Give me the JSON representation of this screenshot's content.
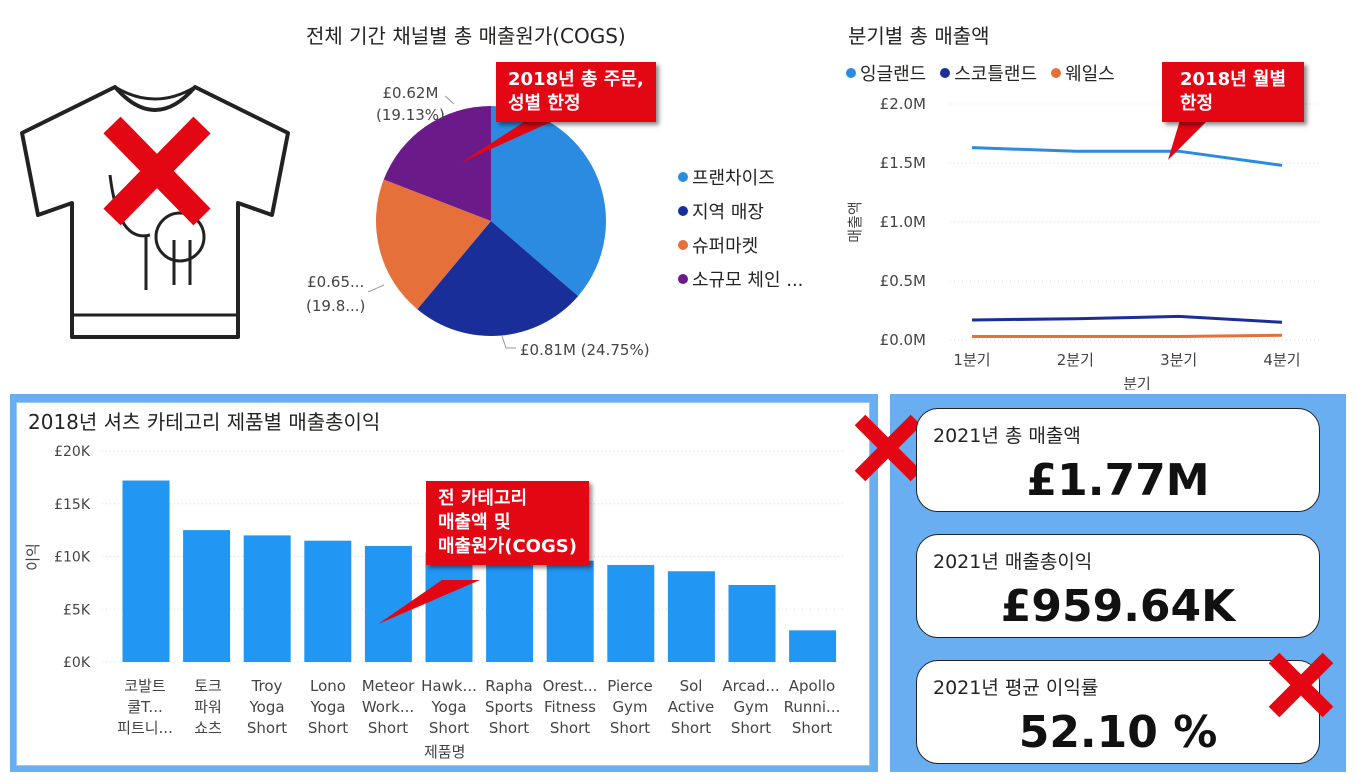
{
  "pie": {
    "title": "전체 기간 채널별 총 매출원가(COGS)",
    "callout": [
      "2018년 총 주문,",
      "성별 한정"
    ],
    "labels": {
      "purple": [
        "£0.62M",
        "(19.13%)"
      ],
      "orange": [
        "£0.65...",
        "(19.8...)"
      ],
      "navy": "£0.81M (24.75%)"
    },
    "legend": [
      {
        "name": "프랜차이즈",
        "color": "#2a8be0"
      },
      {
        "name": "지역 매장",
        "color": "#1a2e9a"
      },
      {
        "name": "슈퍼마켓",
        "color": "#e5703a"
      },
      {
        "name": "소규모 체인 ...",
        "color": "#6b1a8a"
      }
    ]
  },
  "line": {
    "title": "분기별 총 매출액",
    "callout": [
      "2018년 월별",
      "한정"
    ],
    "legend": [
      {
        "name": "잉글랜드",
        "color": "#2a8be0"
      },
      {
        "name": "스코틀랜드",
        "color": "#1a2e9a"
      },
      {
        "name": "웨일스",
        "color": "#e5703a"
      }
    ],
    "yticks": [
      "£2.0M",
      "£1.5M",
      "£1.0M",
      "£0.5M",
      "£0.0M"
    ],
    "xticks": [
      "1분기",
      "2분기",
      "3분기",
      "4분기"
    ],
    "ylabel": "매출액",
    "xlabel": "분기"
  },
  "bar": {
    "title": "2018년 셔츠 카테고리 제품별 매출총이익",
    "callout": [
      "전 카테고리",
      "매출액 및",
      "매출원가(COGS)"
    ],
    "yticks": [
      "£20K",
      "£15K",
      "£10K",
      "£5K",
      "£0K"
    ],
    "ylabel": "이익",
    "xlabel": "제품명",
    "categories": [
      [
        "코발트",
        "쿨T...",
        "피트니..."
      ],
      [
        "토크",
        "파워",
        "쇼츠"
      ],
      [
        "Troy",
        "Yoga",
        "Short"
      ],
      [
        "Lono",
        "Yoga",
        "Short"
      ],
      [
        "Meteor",
        "Work...",
        "Short"
      ],
      [
        "Hawk...",
        "Yoga",
        "Short"
      ],
      [
        "Rapha",
        "Sports",
        "Short"
      ],
      [
        "Orest...",
        "Fitness",
        "Short"
      ],
      [
        "Pierce",
        "Gym",
        "Short"
      ],
      [
        "Sol",
        "Active",
        "Short"
      ],
      [
        "Arcad...",
        "Gym",
        "Short"
      ],
      [
        "Apollo",
        "Runni...",
        "Short"
      ]
    ]
  },
  "kpi": {
    "revenue": {
      "label": "2021년 총 매출액",
      "value": "£1.77M"
    },
    "profit": {
      "label": "2021년 매출총이익",
      "value": "£959.64K"
    },
    "margin": {
      "label": "2021년 평균 이익률",
      "value": "52.10 %"
    }
  },
  "chart_data": [
    {
      "type": "pie",
      "title": "전체 기간 채널별 총 매출원가(COGS)",
      "categories": [
        "프랜차이즈",
        "지역 매장",
        "슈퍼마켓",
        "소규모 체인 ..."
      ],
      "values": [
        36.32,
        24.75,
        19.8,
        19.13
      ],
      "units": "percent",
      "colors": [
        "#2a8be0",
        "#1a2e9a",
        "#e5703a",
        "#6b1a8a"
      ]
    },
    {
      "type": "line",
      "title": "분기별 총 매출액",
      "xlabel": "분기",
      "ylabel": "매출액",
      "categories": [
        "1분기",
        "2분기",
        "3분기",
        "4분기"
      ],
      "ylim": [
        0,
        2.0
      ],
      "units": "£M",
      "series": [
        {
          "name": "잉글랜드",
          "color": "#2a8be0",
          "values": [
            1.63,
            1.6,
            1.6,
            1.48
          ]
        },
        {
          "name": "스코틀랜드",
          "color": "#1a2e9a",
          "values": [
            0.17,
            0.18,
            0.2,
            0.15
          ]
        },
        {
          "name": "웨일스",
          "color": "#e5703a",
          "values": [
            0.03,
            0.03,
            0.03,
            0.04
          ]
        }
      ],
      "grid": true,
      "legend": "top-left"
    },
    {
      "type": "bar",
      "title": "2018년 셔츠 카테고리 제품별 매출총이익",
      "xlabel": "제품명",
      "ylabel": "이익",
      "categories": [
        "코발트 쿨T... 피트니...",
        "토크 파워 쇼츠",
        "Troy Yoga Short",
        "Lono Yoga Short",
        "Meteor Work... Short",
        "Hawk... Yoga Short",
        "Rapha Sports Short",
        "Orest... Fitness Short",
        "Pierce Gym Short",
        "Sol Active Short",
        "Arcad... Gym Short",
        "Apollo Runni... Short"
      ],
      "values": [
        17.2,
        12.5,
        12.0,
        11.5,
        11.0,
        10.4,
        9.8,
        9.6,
        9.2,
        8.6,
        7.3,
        3.0
      ],
      "units": "£K",
      "ylim": [
        0,
        20
      ],
      "color": "#2196f3",
      "grid": true
    }
  ]
}
